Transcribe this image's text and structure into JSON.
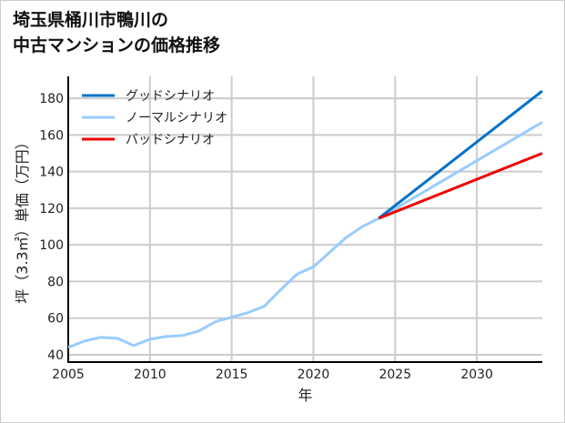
{
  "chart_data": {
    "type": "line",
    "title": [
      "埼玉県桶川市鴨川の",
      "中古マンションの価格推移"
    ],
    "xlabel": "年",
    "ylabel": "坪（3.3㎡）単価（万円）",
    "xlim": [
      2005,
      2034
    ],
    "ylim": [
      36,
      192
    ],
    "xticks": [
      2005,
      2010,
      2015,
      2020,
      2025,
      2030
    ],
    "yticks": [
      40,
      60,
      80,
      100,
      120,
      140,
      160,
      180
    ],
    "grid": true,
    "legend_position": "top-left",
    "series": [
      {
        "name": "グッドシナリオ",
        "color": "#0070c8",
        "x": [
          2024,
          2034
        ],
        "y": [
          114.5,
          184
        ]
      },
      {
        "name": "ノーマルシナリオ",
        "color": "#99ccff",
        "x": [
          2005,
          2006,
          2007,
          2008,
          2009,
          2010,
          2011,
          2012,
          2013,
          2014,
          2015,
          2016,
          2017,
          2018,
          2019,
          2020,
          2021,
          2022,
          2023,
          2024,
          2034
        ],
        "y": [
          44,
          47.5,
          49.5,
          49,
          45,
          48.5,
          50,
          50.5,
          53,
          58,
          60.5,
          63,
          66.5,
          75.5,
          84,
          88,
          96,
          104,
          110,
          114.5,
          167
        ]
      },
      {
        "name": "バッドシナリオ",
        "color": "#ee0000",
        "x": [
          2024,
          2034
        ],
        "y": [
          114.5,
          150
        ]
      }
    ]
  }
}
